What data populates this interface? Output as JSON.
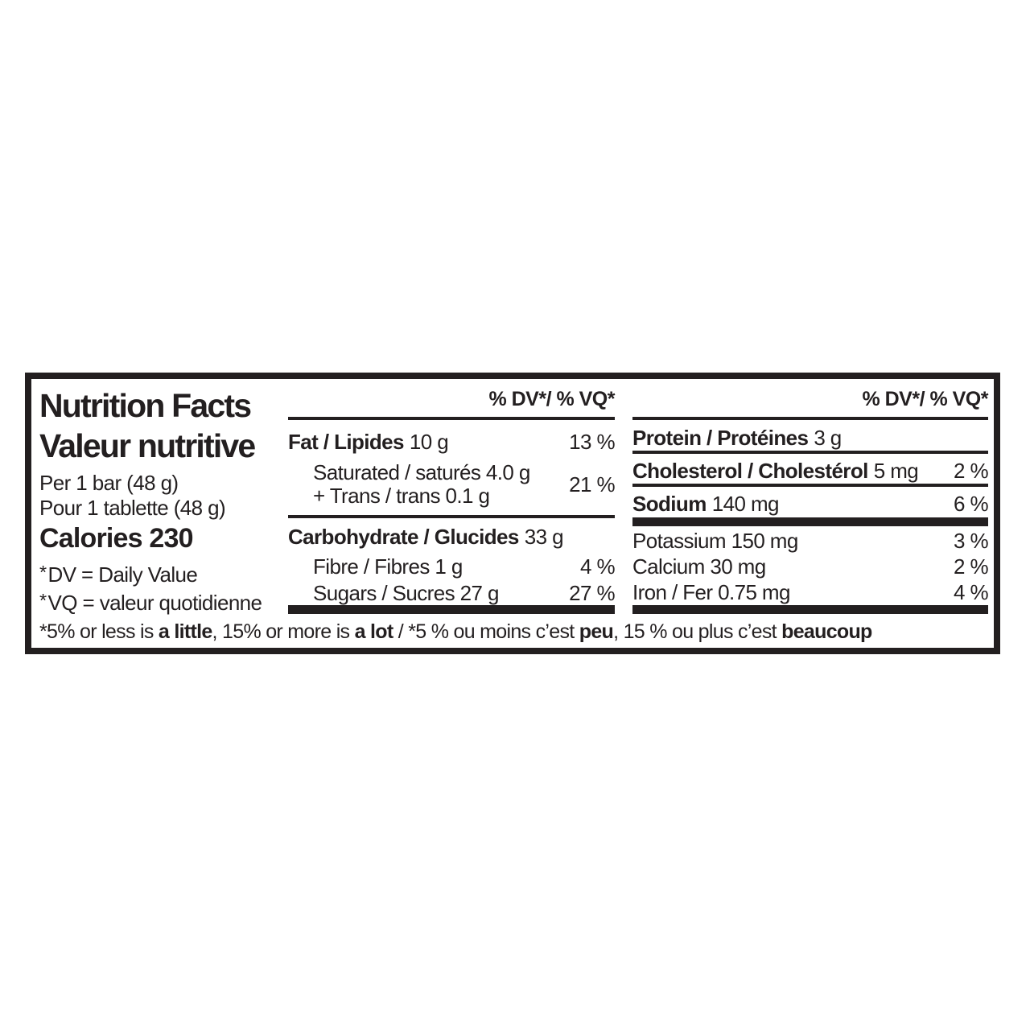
{
  "label": {
    "title_en": "Nutrition Facts",
    "title_fr": "Valeur nutritive",
    "serving_en": "Per 1 bar (48 g)",
    "serving_fr": "Pour 1 tablette (48 g)",
    "calories": "Calories 230",
    "asterisk": "*",
    "dv_note_en": "DV = Daily Value",
    "dv_note_fr": "VQ = valeur quotidienne"
  },
  "middle": {
    "header": "% DV*/ % VQ*",
    "fat": {
      "name": "Fat / Lipides",
      "amount": "10 g",
      "dv": "13 %"
    },
    "saturated": {
      "line1": "Saturated / saturés 4.0 g",
      "line2": "+ Trans / trans 0.1 g",
      "dv": "21 %"
    },
    "carbohydrate": {
      "name": "Carbohydrate / Glucides",
      "amount": "33 g"
    },
    "fibre": {
      "name": "Fibre / Fibres 1 g",
      "dv": "4 %"
    },
    "sugars": {
      "name": "Sugars / Sucres 27 g",
      "dv": "27 %"
    }
  },
  "right": {
    "header": "% DV*/ % VQ*",
    "protein": {
      "name": "Protein / Protéines",
      "amount": "3 g"
    },
    "cholesterol": {
      "name": "Cholesterol / Cholestérol",
      "amount": "5 mg",
      "dv": "2 %"
    },
    "sodium": {
      "name": "Sodium",
      "amount": "140 mg",
      "dv": "6 %"
    },
    "potassium": {
      "name": "Potassium 150 mg",
      "dv": "3 %"
    },
    "calcium": {
      "name": "Calcium 30 mg",
      "dv": "2 %"
    },
    "iron": {
      "name": "Iron / Fer 0.75 mg",
      "dv": "4 %"
    }
  },
  "footnote": {
    "segments": [
      {
        "text": "*5% or less is "
      },
      {
        "text": "a little"
      },
      {
        "text": ", 15% or more is "
      },
      {
        "text": "a lot"
      },
      {
        "text": " / *5 % ou moins c’est "
      },
      {
        "text": "peu"
      },
      {
        "text": ", 15 % ou plus c’est "
      },
      {
        "text": "beaucoup"
      }
    ]
  },
  "colors": {
    "ink": "#231f20",
    "background": "#ffffff"
  }
}
